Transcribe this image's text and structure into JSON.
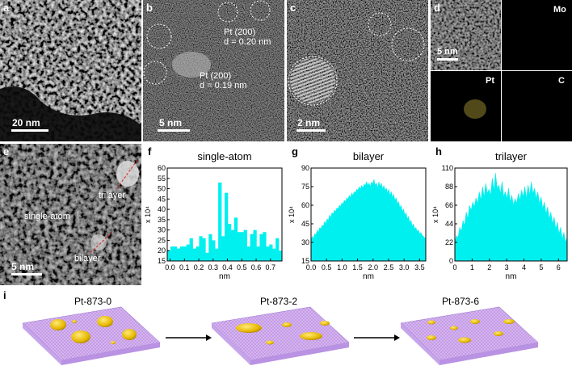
{
  "panels": {
    "a": {
      "label": "a",
      "scalebar": "20 nm"
    },
    "b": {
      "label": "b",
      "scalebar": "5 nm",
      "ann1_l1": "Pt (200)",
      "ann1_l2": "d = 0.20 nm",
      "ann2_l1": "Pt (200)",
      "ann2_l2": "d = 0.19 nm"
    },
    "c": {
      "label": "c",
      "scalebar": "2 nm"
    },
    "d": {
      "label": "d",
      "scalebar": "5 nm",
      "elements": [
        "Mo",
        "Pt",
        "C"
      ],
      "element_colors": [
        "#00e5ff",
        "#e8d14a",
        "#ff2244"
      ]
    },
    "e": {
      "label": "e",
      "scalebar": "5 nm",
      "tag_trilayer": "trilayer",
      "tag_single": "single-atom",
      "tag_bilayer": "bilayer"
    },
    "i": {
      "label": "i",
      "stages": [
        "Pt-873-0",
        "Pt-873-2",
        "Pt-873-6"
      ]
    }
  },
  "chart_data": [
    {
      "panel": "f",
      "type": "bar",
      "title": "single-atom",
      "xlabel": "nm",
      "ylabel": "x 10⁴",
      "xlim": [
        -0.02,
        0.78
      ],
      "ylim": [
        15,
        60
      ],
      "xticks": [
        0.0,
        0.1,
        0.2,
        0.3,
        0.4,
        0.5,
        0.6,
        0.7
      ],
      "xtick_labels": [
        "0.0",
        "0.1",
        "0.2",
        "0.3",
        "0.4",
        "0.5",
        "0.6",
        "0.7"
      ],
      "yticks": [
        15,
        20,
        25,
        30,
        35,
        40,
        45,
        50,
        55,
        60
      ],
      "ytick_labels": [
        "15",
        "20",
        "25",
        "30",
        "35",
        "40",
        "45",
        "50",
        "55",
        "60"
      ],
      "color": "#00f0f0",
      "series": [
        {
          "values": [
            20,
            22,
            22,
            21,
            22,
            22,
            23,
            26,
            21,
            22,
            27,
            26,
            19,
            28,
            25,
            21,
            53,
            27,
            48,
            33,
            30,
            36,
            29,
            29,
            30,
            22,
            28,
            30,
            22,
            28,
            29,
            22,
            23,
            21,
            26,
            20
          ]
        }
      ]
    },
    {
      "panel": "g",
      "type": "area",
      "title": "bilayer",
      "xlabel": "nm",
      "ylabel": "x 10⁴",
      "xlim": [
        0,
        3.7
      ],
      "ylim": [
        15,
        90
      ],
      "xticks": [
        0.0,
        0.5,
        1.0,
        1.5,
        2.0,
        2.5,
        3.0,
        3.5
      ],
      "xtick_labels": [
        "0.0",
        "0.5",
        "1.0",
        "1.5",
        "2.0",
        "2.5",
        "3.0",
        "3.5"
      ],
      "yticks": [
        15,
        30,
        45,
        60,
        75,
        90
      ],
      "ytick_labels": [
        "15",
        "30",
        "45",
        "60",
        "75",
        "90"
      ],
      "color": "#00f0f0",
      "series": [
        {
          "values": [
            31,
            35,
            33,
            37,
            36,
            40,
            38,
            42,
            41,
            44,
            43,
            47,
            45,
            49,
            48,
            52,
            50,
            54,
            53,
            56,
            55,
            58,
            57,
            60,
            59,
            62,
            61,
            64,
            63,
            66,
            65,
            68,
            66,
            70,
            68,
            71,
            70,
            73,
            72,
            75,
            73,
            76,
            74,
            77,
            76,
            79,
            76,
            78,
            75,
            79,
            77,
            81,
            76,
            78,
            74,
            79,
            75,
            78,
            73,
            76,
            72,
            74,
            70,
            73,
            68,
            71,
            66,
            69,
            64,
            66,
            61,
            63,
            58,
            60,
            55,
            57,
            52,
            54,
            49,
            51,
            46,
            48,
            43,
            45,
            41,
            42,
            39,
            40,
            37,
            38,
            36,
            35,
            34,
            33
          ]
        }
      ]
    },
    {
      "panel": "h",
      "type": "area",
      "title": "trilayer",
      "xlabel": "nm",
      "ylabel": "x 10⁴",
      "xlim": [
        0,
        6.5
      ],
      "ylim": [
        0,
        110
      ],
      "xticks": [
        0,
        1,
        2,
        3,
        4,
        5,
        6
      ],
      "xtick_labels": [
        "0",
        "1",
        "2",
        "3",
        "4",
        "5",
        "6"
      ],
      "yticks": [
        0,
        22,
        44,
        66,
        88,
        110
      ],
      "ytick_labels": [
        "0",
        "22",
        "44",
        "66",
        "88",
        "110"
      ],
      "color": "#00f0f0",
      "series": [
        {
          "values": [
            22,
            30,
            28,
            40,
            35,
            48,
            42,
            58,
            50,
            66,
            60,
            70,
            64,
            75,
            68,
            82,
            72,
            88,
            76,
            92,
            80,
            85,
            78,
            98,
            84,
            104,
            86,
            90,
            80,
            94,
            76,
            82,
            74,
            86,
            70,
            78,
            66,
            74,
            68,
            80,
            72,
            84,
            76,
            88,
            74,
            90,
            78,
            94,
            80,
            86,
            74,
            82,
            68,
            76,
            62,
            70,
            56,
            64,
            50,
            58,
            44,
            52,
            38,
            46,
            32,
            40,
            26,
            34,
            22,
            28
          ]
        }
      ]
    }
  ]
}
